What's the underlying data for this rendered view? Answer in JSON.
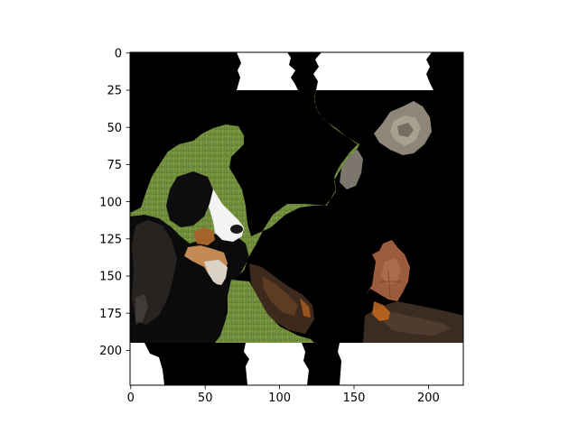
{
  "figure": {
    "x_ticks": [
      "0",
      "50",
      "100",
      "150",
      "200"
    ],
    "y_ticks": [
      "0",
      "25",
      "50",
      "75",
      "100",
      "125",
      "150",
      "175",
      "200"
    ],
    "x_range": [
      0,
      224
    ],
    "y_range": [
      0,
      224
    ],
    "grid": false,
    "image": {
      "description_colors": {
        "background_mask": "#000000",
        "grass": "#6f8a3a",
        "white_area": "#ffffff",
        "dog_black": "#0d0d0d",
        "dog_white": "#f2f2f2",
        "dog_tan": "#a8642a",
        "cat_gray": "#8d8577",
        "leaf_brown": "#9a5a3c",
        "bark_dark": "#3a2a20"
      }
    }
  }
}
